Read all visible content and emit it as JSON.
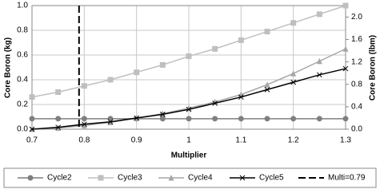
{
  "chart_data": {
    "type": "line",
    "x": [
      0.7,
      0.75,
      0.8,
      0.85,
      0.9,
      0.95,
      1.0,
      1.05,
      1.1,
      1.15,
      1.2,
      1.25,
      1.3
    ],
    "series": [
      {
        "name": "Cycle2",
        "color": "#7f7f7f",
        "marker": "circle",
        "values": [
          0.085,
          0.085,
          0.085,
          0.085,
          0.085,
          0.085,
          0.085,
          0.085,
          0.085,
          0.085,
          0.085,
          0.085,
          0.085
        ]
      },
      {
        "name": "Cycle3",
        "color": "#bfbfbf",
        "marker": "square",
        "values": [
          0.26,
          0.3,
          0.35,
          0.4,
          0.46,
          0.52,
          0.59,
          0.65,
          0.72,
          0.79,
          0.86,
          0.93,
          1.0
        ]
      },
      {
        "name": "Cycle4",
        "color": "#a6a6a6",
        "marker": "triangle",
        "values": [
          0.0,
          0.01,
          0.03,
          0.055,
          0.09,
          0.125,
          0.17,
          0.22,
          0.28,
          0.36,
          0.45,
          0.55,
          0.65
        ]
      },
      {
        "name": "Cycle5",
        "color": "#000000",
        "marker": "x",
        "values": [
          0.0,
          0.015,
          0.04,
          0.06,
          0.09,
          0.12,
          0.16,
          0.21,
          0.26,
          0.32,
          0.38,
          0.44,
          0.49
        ]
      }
    ],
    "vline": {
      "name": "Multi=0.79",
      "x": 0.79,
      "color": "#000000"
    },
    "x_label": "Multiplier",
    "y_label": "Core Boron (kg)",
    "y2_label": "Core Boron (lbm)",
    "xlim": [
      0.7,
      1.3
    ],
    "xticks": [
      0.7,
      0.8,
      0.9,
      {
        "value": 1.0,
        "label": "1"
      },
      1.1,
      1.2,
      1.3
    ],
    "ylim": [
      0,
      1.0
    ],
    "yticks": [
      {
        "value": 0,
        "label": "0.0"
      },
      0.2,
      0.4,
      0.6,
      0.8,
      {
        "value": 1.0,
        "label": "1.0"
      }
    ],
    "y2lim": [
      0,
      2.2046
    ],
    "y2ticks": [
      {
        "value": 0,
        "label": "0.0"
      },
      0.4,
      0.8,
      1.2,
      1.6,
      {
        "value": 2.0,
        "label": "2.0"
      }
    ],
    "grid": true,
    "legend": "bottom"
  }
}
